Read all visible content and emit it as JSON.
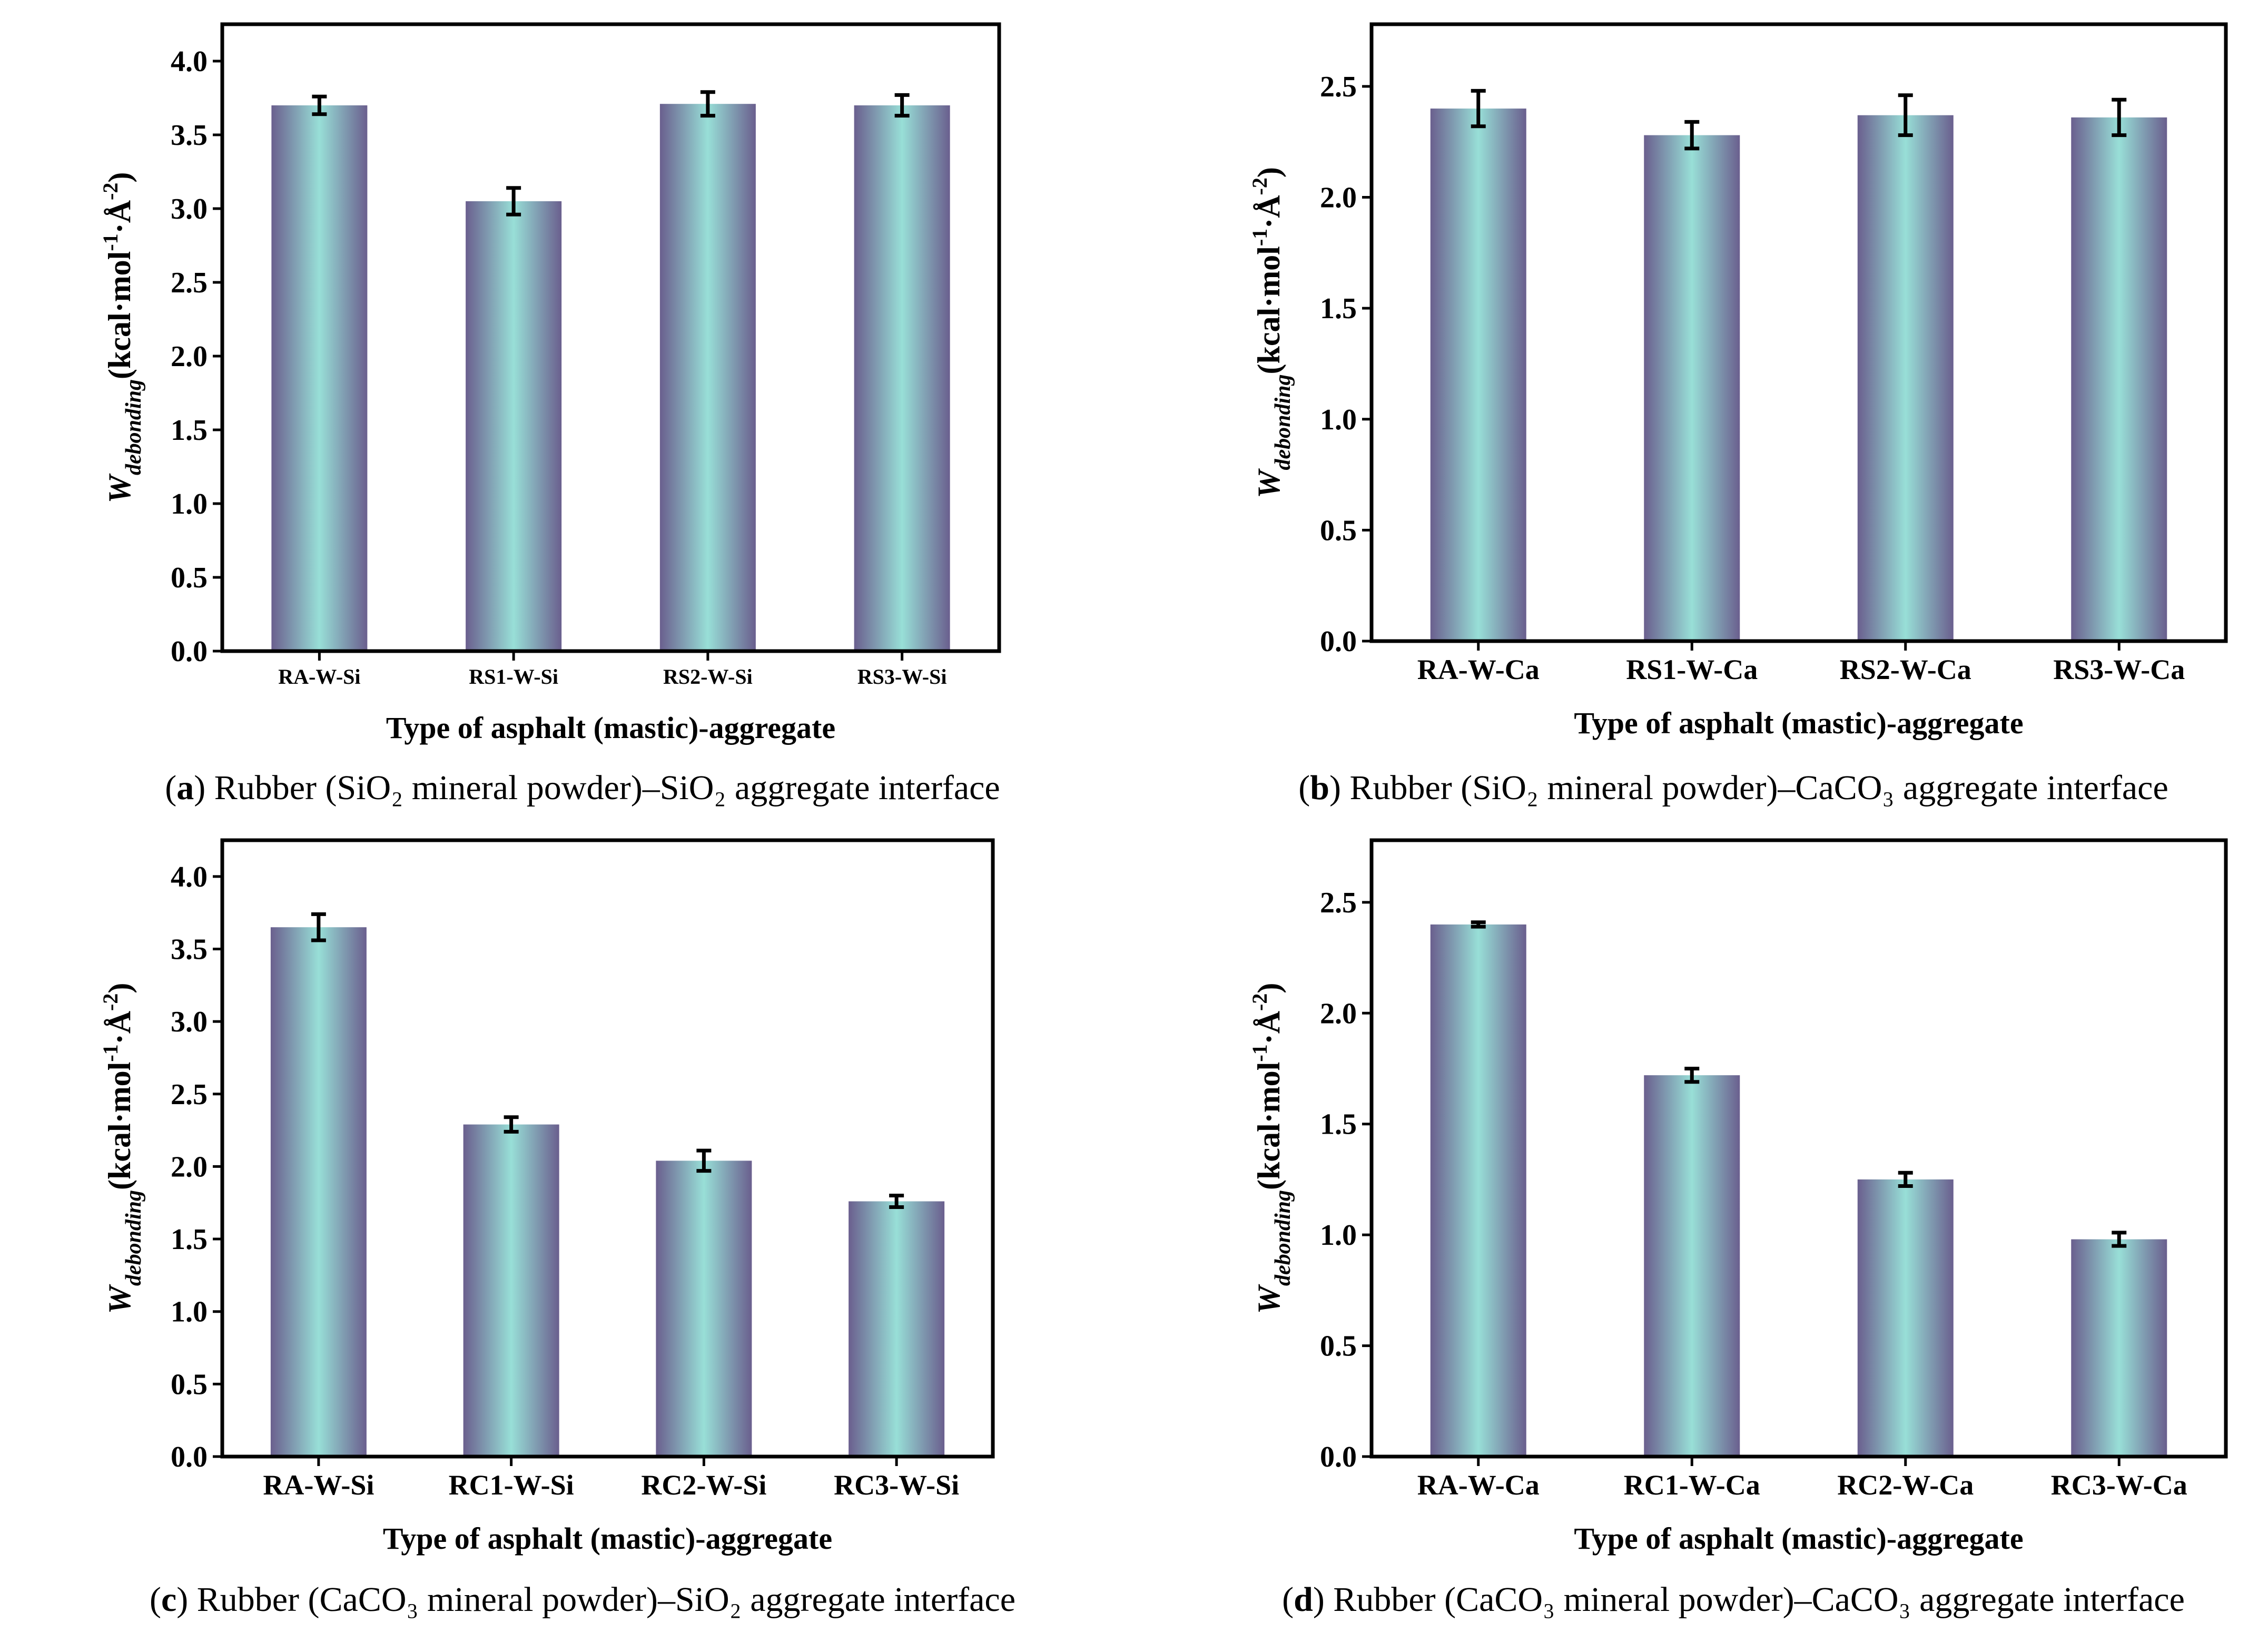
{
  "colors": {
    "bar_edge": "#6A5F8E",
    "bar_center": "#98DFD7",
    "axis": "#000000"
  },
  "chart_data": [
    {
      "type": "bar",
      "panel": "a",
      "categories": [
        "RA-W-Si",
        "RS1-W-Si",
        "RS2-W-Si",
        "RS3-W-Si"
      ],
      "values": [
        3.7,
        3.05,
        3.71,
        3.7
      ],
      "errors": [
        0.06,
        0.09,
        0.08,
        0.07
      ],
      "xlabel": "Type of asphalt (mastic)-aggregate",
      "ylabel_main": "W",
      "ylabel_sub": "debonding",
      "ylabel_units": "(kcal·mol",
      "ylabel_exp1": "-1",
      "ylabel_mid": "·Å",
      "ylabel_exp2": "-2",
      "ylabel_close": ")",
      "ylim": [
        0,
        4.25
      ],
      "yticks": [
        "0.0",
        "0.5",
        "1.0",
        "1.5",
        "2.0",
        "2.5",
        "3.0",
        "3.5",
        "4.0"
      ],
      "caption_letter": "a",
      "caption_text": "Rubber (SiO₂ mineral powder)–SiO₂ aggregate interface"
    },
    {
      "type": "bar",
      "panel": "b",
      "categories": [
        "RA-W-Ca",
        "RS1-W-Ca",
        "RS2-W-Ca",
        "RS3-W-Ca"
      ],
      "values": [
        2.4,
        2.28,
        2.37,
        2.36
      ],
      "errors": [
        0.08,
        0.06,
        0.09,
        0.08
      ],
      "xlabel": "Type of asphalt (mastic)-aggregate",
      "ylabel_main": "W",
      "ylabel_sub": "debonding",
      "ylabel_units": "(kcal·mol",
      "ylabel_exp1": "-1",
      "ylabel_mid": "·Å",
      "ylabel_exp2": "-2",
      "ylabel_close": ")",
      "ylim": [
        0,
        2.78
      ],
      "yticks": [
        "0.0",
        "0.5",
        "1.0",
        "1.5",
        "2.0",
        "2.5"
      ],
      "caption_letter": "b",
      "caption_text": "Rubber (SiO₂ mineral powder)–CaCO₃ aggregate interface"
    },
    {
      "type": "bar",
      "panel": "c",
      "categories": [
        "RA-W-Si",
        "RC1-W-Si",
        "RC2-W-Si",
        "RC3-W-Si"
      ],
      "values": [
        3.65,
        2.29,
        2.04,
        1.76
      ],
      "errors": [
        0.09,
        0.05,
        0.07,
        0.04
      ],
      "xlabel": "Type of asphalt (mastic)-aggregate",
      "ylabel_main": "W",
      "ylabel_sub": "debonding",
      "ylabel_units": "(kcal·mol",
      "ylabel_exp1": "-1",
      "ylabel_mid": "·Å",
      "ylabel_exp2": "-2",
      "ylabel_close": ")",
      "ylim": [
        0,
        4.25
      ],
      "yticks": [
        "0.0",
        "0.5",
        "1.0",
        "1.5",
        "2.0",
        "2.5",
        "3.0",
        "3.5",
        "4.0"
      ],
      "caption_letter": "c",
      "caption_text": "Rubber (CaCO₃ mineral powder)–SiO₂ aggregate interface"
    },
    {
      "type": "bar",
      "panel": "d",
      "categories": [
        "RA-W-Ca",
        "RC1-W-Ca",
        "RC2-W-Ca",
        "RC3-W-Ca"
      ],
      "values": [
        2.4,
        1.72,
        1.25,
        0.98
      ],
      "errors": [
        0.01,
        0.03,
        0.03,
        0.03
      ],
      "xlabel": "Type of asphalt (mastic)-aggregate",
      "ylabel_main": "W",
      "ylabel_sub": "debonding",
      "ylabel_units": "(kcal·mol",
      "ylabel_exp1": "-1",
      "ylabel_mid": "·Å",
      "ylabel_exp2": "-2",
      "ylabel_close": ")",
      "ylim": [
        0,
        2.78
      ],
      "yticks": [
        "0.0",
        "0.5",
        "1.0",
        "1.5",
        "2.0",
        "2.5"
      ],
      "caption_letter": "d",
      "caption_text": "Rubber (CaCO₃ mineral powder)–CaCO₃ aggregate interface"
    }
  ]
}
